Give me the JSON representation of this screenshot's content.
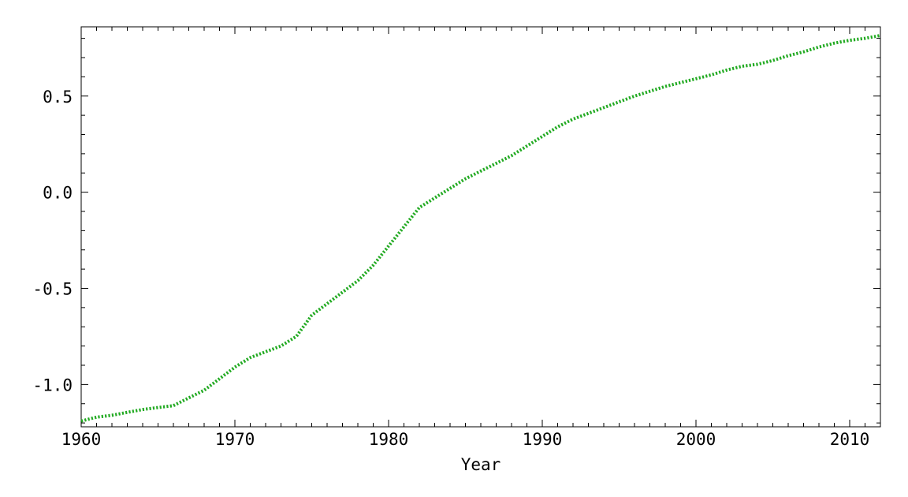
{
  "chart_data": {
    "type": "line",
    "title": "",
    "xlabel": "Year",
    "ylabel": "",
    "xlim": [
      1960,
      2012
    ],
    "ylim": [
      -1.22,
      0.86
    ],
    "grid": false,
    "legend": "none",
    "x_ticks": [
      1960,
      1970,
      1980,
      1990,
      2000,
      2010
    ],
    "x_tick_labels": [
      "1960",
      "1970",
      "1980",
      "1990",
      "2000",
      "2010"
    ],
    "y_ticks": [
      -1.0,
      -0.5,
      0.0,
      0.5
    ],
    "y_tick_labels": [
      "-1.0",
      "-0.5",
      "0.0",
      "0.5"
    ],
    "series": [
      {
        "color": "#22aa22",
        "style": "dotted",
        "x": [
          1960,
          1961,
          1962,
          1963,
          1964,
          1965,
          1966,
          1967,
          1968,
          1969,
          1970,
          1971,
          1972,
          1973,
          1974,
          1975,
          1976,
          1977,
          1978,
          1979,
          1980,
          1981,
          1982,
          1983,
          1984,
          1985,
          1986,
          1987,
          1988,
          1989,
          1990,
          1991,
          1992,
          1993,
          1994,
          1995,
          1996,
          1997,
          1998,
          1999,
          2000,
          2001,
          2002,
          2003,
          2004,
          2005,
          2006,
          2007,
          2008,
          2009,
          2010,
          2011,
          2012
        ],
        "y": [
          -1.19,
          -1.17,
          -1.16,
          -1.145,
          -1.13,
          -1.12,
          -1.11,
          -1.07,
          -1.03,
          -0.97,
          -0.91,
          -0.86,
          -0.83,
          -0.8,
          -0.75,
          -0.64,
          -0.58,
          -0.52,
          -0.46,
          -0.38,
          -0.28,
          -0.18,
          -0.08,
          -0.03,
          0.02,
          0.07,
          0.11,
          0.15,
          0.19,
          0.24,
          0.29,
          0.34,
          0.38,
          0.41,
          0.44,
          0.47,
          0.5,
          0.525,
          0.55,
          0.57,
          0.59,
          0.61,
          0.635,
          0.655,
          0.665,
          0.685,
          0.71,
          0.73,
          0.755,
          0.775,
          0.79,
          0.8,
          0.815
        ]
      }
    ]
  }
}
